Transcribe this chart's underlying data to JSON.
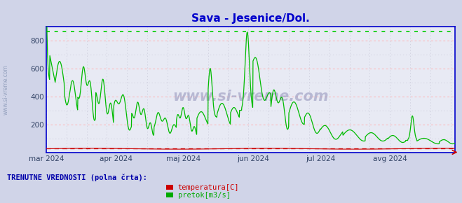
{
  "title": "Sava - Jesenice/Dol.",
  "title_color": "#0000cc",
  "title_fontsize": 11,
  "bg_color": "#d0d4e8",
  "plot_bg_color": "#e8eaf4",
  "ylim": [
    0,
    900
  ],
  "yticks": [
    200,
    400,
    600,
    800
  ],
  "grid_color_pink": "#ffb0b0",
  "grid_color_gray": "#c8c8d8",
  "axis_color": "#0000cc",
  "tick_label_color": "#334466",
  "watermark": "www.si-vreme.com",
  "watermark_color": "#9090b8",
  "watermark_alpha": 0.55,
  "legend_title": "TRENUTNE VREDNOSTI (polna črta):",
  "legend_title_color": "#0000aa",
  "legend_items": [
    {
      "label": "temperatura[C]",
      "color": "#cc0000"
    },
    {
      "label": "pretok[m3/s]",
      "color": "#00aa00"
    }
  ],
  "hline_green_y": 862,
  "hline_green_color": "#00cc00",
  "hline_red_y": 28,
  "hline_red_color": "#cc0000",
  "x_tick_labels": [
    "mar 2024",
    "apr 2024",
    "maj 2024",
    "jun 2024",
    "jul 2024",
    "avg 2024"
  ],
  "x_tick_positions": [
    0,
    31,
    61,
    92,
    122,
    153
  ],
  "flow_color": "#00bb00",
  "temp_color": "#cc0000"
}
